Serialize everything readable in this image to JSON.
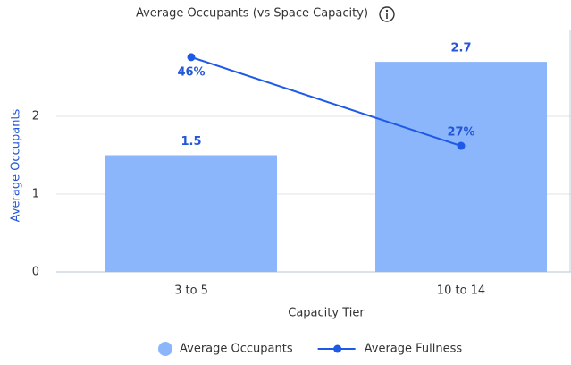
{
  "chart_data": {
    "type": "bar_line",
    "title": "Average Occupants (vs Space Capacity)",
    "x_label": "Capacity Tier",
    "y_label": "Average Occupants",
    "categories": [
      "3 to 5",
      "10 to 14"
    ],
    "ylim": [
      0,
      3
    ],
    "yticks": [
      0,
      1,
      2
    ],
    "y2lim": [
      0,
      50
    ],
    "grid": true,
    "legend": "bottom",
    "series": [
      {
        "name": "Average Occupants",
        "type": "bar",
        "color": "#8cb6fb",
        "values": [
          1.5,
          2.7
        ]
      },
      {
        "name": "Average Fullness",
        "type": "line",
        "axis": "y2",
        "color": "#1e5ae6",
        "values": [
          46,
          27
        ],
        "value_labels": [
          "46%",
          "27%"
        ]
      }
    ]
  }
}
